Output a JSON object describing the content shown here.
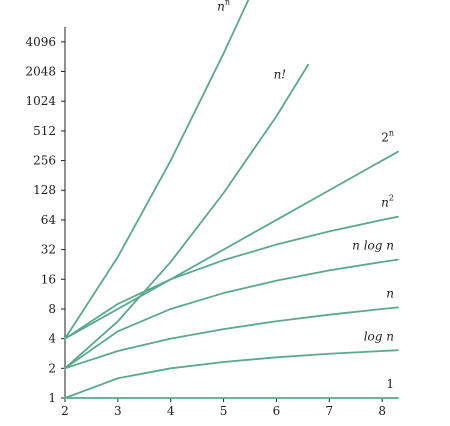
{
  "chart_data": {
    "type": "line",
    "title": "",
    "xlabel": "",
    "ylabel": "",
    "x_ticks": [
      "2",
      "3",
      "4",
      "5",
      "6",
      "7",
      "8"
    ],
    "y_ticks": [
      "1",
      "2",
      "4",
      "8",
      "16",
      "32",
      "64",
      "128",
      "256",
      "512",
      "1024",
      "2048",
      "4096"
    ],
    "y_scale": "log2",
    "xlim": [
      2,
      8.3
    ],
    "ylim_log2": [
      0,
      12.5
    ],
    "grid": false,
    "line_color": "#5aa88e",
    "series": [
      {
        "name": "n^n",
        "label_base": "n",
        "label_sup": "n",
        "label_italic": true,
        "x": [
          2,
          3,
          4,
          5,
          5.5
        ],
        "y": [
          4,
          27,
          256,
          3125,
          11829
        ]
      },
      {
        "name": "n!",
        "label_base": "n!",
        "label_sup": "",
        "label_italic": true,
        "x": [
          2,
          3,
          4,
          5,
          6,
          6.6
        ],
        "y": [
          2,
          6,
          24,
          120,
          720,
          2400
        ]
      },
      {
        "name": "2^n",
        "label_base": "2",
        "label_sup": "n",
        "label_italic": false,
        "x": [
          2,
          3,
          4,
          5,
          6,
          7,
          8,
          8.3
        ],
        "y": [
          4,
          8,
          16,
          32,
          64,
          128,
          256,
          315
        ]
      },
      {
        "name": "n^2",
        "label_base": "n",
        "label_sup": "2",
        "label_italic": true,
        "x": [
          2,
          3,
          4,
          5,
          6,
          7,
          8,
          8.3
        ],
        "y": [
          4,
          9,
          16,
          25,
          36,
          49,
          64,
          69
        ]
      },
      {
        "name": "n log n",
        "label_base": "n log n",
        "label_sup": "",
        "label_italic": true,
        "x": [
          2,
          3,
          4,
          5,
          6,
          7,
          8,
          8.3
        ],
        "y": [
          2,
          4.75,
          8,
          11.6,
          15.5,
          19.7,
          24,
          25.3
        ]
      },
      {
        "name": "n",
        "label_base": "n",
        "label_sup": "",
        "label_italic": true,
        "x": [
          2,
          3,
          4,
          5,
          6,
          7,
          8,
          8.3
        ],
        "y": [
          2,
          3,
          4,
          5,
          6,
          7,
          8,
          8.3
        ]
      },
      {
        "name": "log n",
        "label_base": "log n",
        "label_sup": "",
        "label_italic": true,
        "x": [
          2,
          3,
          4,
          5,
          6,
          7,
          8,
          8.3
        ],
        "y": [
          1,
          1.585,
          2,
          2.32,
          2.585,
          2.81,
          3,
          3.05
        ]
      },
      {
        "name": "1",
        "label_base": "1",
        "label_sup": "",
        "label_italic": false,
        "x": [
          2,
          8.3
        ],
        "y": [
          1,
          1
        ]
      }
    ]
  }
}
